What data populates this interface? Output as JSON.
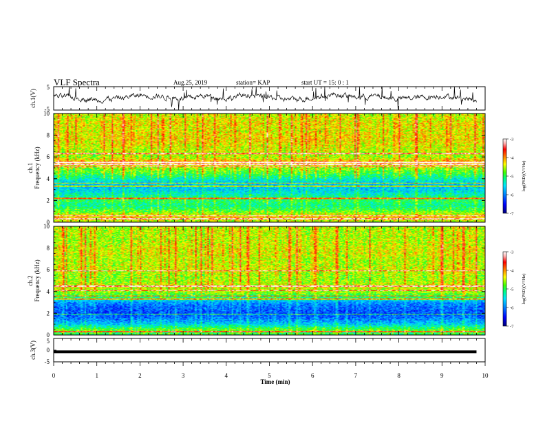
{
  "header": {
    "title": "VLF Spectra",
    "date": "Aug.25, 2019",
    "station": "station= KAP",
    "start": "start UT =   15: 0  : 1"
  },
  "chart_data": [
    {
      "type": "line",
      "panel": "ch1-waveform",
      "ylabel": "ch.1(V)",
      "ylim": [
        -5,
        5
      ],
      "yticks": [
        "5",
        "-5"
      ],
      "xlim": [
        0,
        10
      ],
      "note": "dense noisy waveform trace",
      "x": [
        0,
        0.5,
        1.0,
        1.5,
        2.0,
        2.5,
        3.0,
        3.5,
        4.0,
        4.5,
        5.0,
        5.5,
        6.0,
        6.5,
        7.0,
        7.5,
        8.0,
        8.5,
        9.0,
        9.5,
        9.8
      ],
      "y": [
        1.0,
        0.2,
        -0.6,
        0.1,
        1.4,
        0.8,
        -0.2,
        1.2,
        -0.1,
        1.6,
        0.4,
        -0.5,
        0.3,
        1.8,
        0.5,
        0.9,
        -0.3,
        0.4,
        1.1,
        0.2,
        -0.8
      ]
    },
    {
      "type": "heatmap",
      "panel": "ch1-spectrogram",
      "ylabel": "ch.1\nFrequency (kHz)",
      "ylabel_line1": "ch.1",
      "ylabel_line2": "Frequency (kHz)",
      "ylim": [
        0,
        10
      ],
      "yticks": [
        "0",
        "2",
        "4",
        "6",
        "8",
        "10"
      ],
      "xlim": [
        0,
        10
      ],
      "colorbar": {
        "label": "log(PSD)(V²/Hz)",
        "range": [
          -7,
          -3
        ],
        "ticks": [
          "-3",
          "-4",
          "-5",
          "-6",
          "-7"
        ]
      },
      "freq_profile_kHz": [
        0,
        0.5,
        1,
        1.5,
        2,
        2.5,
        3,
        3.5,
        4,
        4.5,
        5,
        5.5,
        6,
        6.5,
        7,
        7.5,
        8,
        8.5,
        9,
        9.5,
        10
      ],
      "log_psd_profile": [
        -4.6,
        -4.2,
        -4.8,
        -5.2,
        -5.0,
        -5.3,
        -5.6,
        -5.7,
        -5.3,
        -4.9,
        -4.6,
        -4.0,
        -4.6,
        -4.5,
        -4.4,
        -4.3,
        -4.3,
        -4.4,
        -4.3,
        -4.4,
        -4.5
      ],
      "bright_lines_kHz": [
        0.3,
        0.6,
        2.2,
        3.3,
        3.6,
        5.1,
        5.3,
        5.5,
        6.3
      ]
    },
    {
      "type": "heatmap",
      "panel": "ch2-spectrogram",
      "ylabel": "ch.2\nFrequency (kHz)",
      "ylabel_line1": "ch.2",
      "ylabel_line2": "Frequency (kHz)",
      "ylim": [
        0,
        10
      ],
      "yticks": [
        "0",
        "2",
        "4",
        "6",
        "8",
        "10"
      ],
      "xlim": [
        0,
        10
      ],
      "colorbar": {
        "label": "log(PSD)(V²/Hz)",
        "range": [
          -7,
          -3
        ],
        "ticks": [
          "-3",
          "-4",
          "-5",
          "-6",
          "-7"
        ]
      },
      "freq_profile_kHz": [
        0,
        0.5,
        1,
        1.5,
        2,
        2.5,
        3,
        3.5,
        4,
        4.5,
        5,
        5.5,
        6,
        6.5,
        7,
        7.5,
        8,
        8.5,
        9,
        9.5,
        10
      ],
      "log_psd_profile": [
        -5.0,
        -4.8,
        -5.6,
        -6.0,
        -6.2,
        -6.1,
        -5.9,
        -5.0,
        -4.6,
        -4.4,
        -4.6,
        -4.6,
        -4.4,
        -4.5,
        -4.5,
        -4.4,
        -4.4,
        -4.5,
        -4.5,
        -4.5,
        -4.5
      ],
      "bright_lines_kHz": [
        0.3,
        1.9,
        3.3,
        3.6,
        4.1,
        4.5,
        5.9
      ]
    },
    {
      "type": "line",
      "panel": "ch3-waveform",
      "ylabel": "ch.3(V)",
      "ylim": [
        -5,
        5
      ],
      "yticks": [
        "5",
        "0",
        "-5"
      ],
      "xlim": [
        0,
        10
      ],
      "x": [
        0,
        9.8
      ],
      "y": [
        -0.7,
        -0.7
      ],
      "xlabel": "Time (min)",
      "xticks": [
        "0",
        "1",
        "2",
        "3",
        "4",
        "5",
        "6",
        "7",
        "8",
        "9",
        "10"
      ]
    }
  ],
  "colors": {
    "colormap": [
      "#00007a",
      "#0000ff",
      "#0080ff",
      "#00e5ff",
      "#00ff80",
      "#40ff00",
      "#ffff00",
      "#ff8000",
      "#ff0000",
      "#ffb0b0",
      "#ffffff"
    ],
    "trace": "#000000"
  }
}
